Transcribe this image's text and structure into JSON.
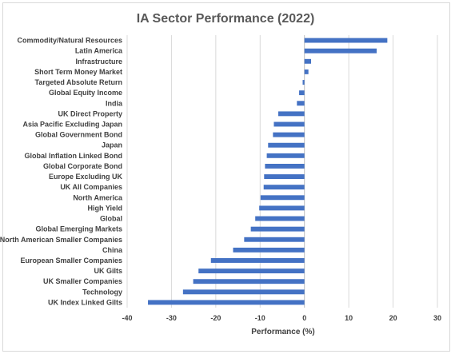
{
  "chart_data": {
    "type": "bar",
    "orientation": "horizontal",
    "title": "IA Sector Performance (2022)",
    "xlabel": "Performance (%)",
    "ylabel": "",
    "xlim": [
      -40,
      30
    ],
    "x_ticks": [
      -40,
      -30,
      -20,
      -10,
      0,
      10,
      20,
      30
    ],
    "grid": true,
    "bar_color": "#4472c4",
    "categories": [
      "Commodity/Natural Resources",
      "Latin America",
      "Infrastructure",
      "Short Term Money Market",
      "Targeted Absolute Return",
      "Global Equity Income",
      "India",
      "UK Direct Property",
      "Asia Pacific Excluding Japan",
      "Global Government Bond",
      "Japan",
      "Global Inflation Linked Bond",
      "Global Corporate Bond",
      "Europe Excluding UK",
      "UK All Companies",
      "North America",
      "High Yield",
      "Global",
      "Global Emerging Markets",
      "North American Smaller Companies",
      "China",
      "European Smaller Companies",
      "UK Gilts",
      "UK Smaller Companies",
      "Technology",
      "UK Index Linked Gilts"
    ],
    "values": [
      18.7,
      16.3,
      1.5,
      0.9,
      -0.4,
      -1.2,
      -1.7,
      -5.9,
      -6.9,
      -7.1,
      -8.2,
      -8.5,
      -8.9,
      -9.1,
      -9.2,
      -9.9,
      -10.2,
      -11.1,
      -12.1,
      -13.6,
      -16.1,
      -21.1,
      -23.9,
      -25.1,
      -27.4,
      -35.3
    ]
  }
}
